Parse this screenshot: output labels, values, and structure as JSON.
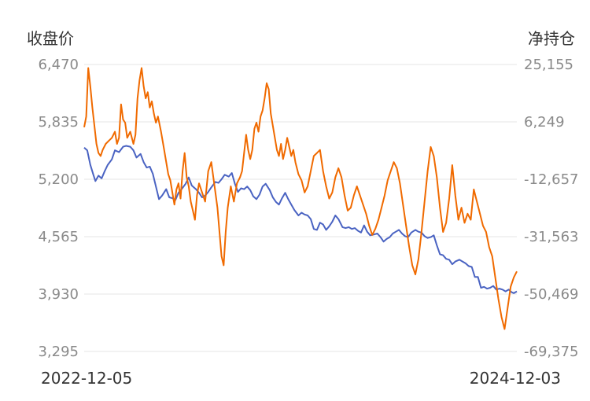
{
  "chart_data": {
    "type": "line",
    "left_axis_title": "收盘价",
    "right_axis_title": "净持仓",
    "y_left": {
      "ticks": [
        "6,470",
        "5,835",
        "5,200",
        "4,565",
        "3,930",
        "3,295"
      ],
      "range": [
        3295,
        6470
      ]
    },
    "y_right": {
      "ticks": [
        "25,155",
        "6,249",
        "-12,657",
        "-31,563",
        "-50,469",
        "-69,375"
      ],
      "range": [
        -69375,
        25155
      ]
    },
    "x_start_label": "2022-12-05",
    "x_end_label": "2024-12-03",
    "grid": true,
    "series": [
      {
        "axis": "left",
        "color": "#4a63c2",
        "points": [
          [
            0,
            5550
          ],
          [
            3,
            5520
          ],
          [
            6,
            5360
          ],
          [
            9,
            5250
          ],
          [
            11,
            5180
          ],
          [
            14,
            5240
          ],
          [
            17,
            5210
          ],
          [
            20,
            5290
          ],
          [
            23,
            5360
          ],
          [
            27,
            5420
          ],
          [
            30,
            5520
          ],
          [
            34,
            5500
          ],
          [
            38,
            5560
          ],
          [
            41,
            5570
          ],
          [
            45,
            5560
          ],
          [
            48,
            5520
          ],
          [
            51,
            5440
          ],
          [
            55,
            5480
          ],
          [
            58,
            5390
          ],
          [
            61,
            5330
          ],
          [
            64,
            5340
          ],
          [
            67,
            5260
          ],
          [
            70,
            5120
          ],
          [
            73,
            4980
          ],
          [
            76,
            5020
          ],
          [
            80,
            5090
          ],
          [
            83,
            5000
          ],
          [
            86,
            4990
          ],
          [
            89,
            4970
          ],
          [
            92,
            5050
          ],
          [
            95,
            5090
          ],
          [
            99,
            5150
          ],
          [
            102,
            5220
          ],
          [
            105,
            5130
          ],
          [
            109,
            5090
          ],
          [
            112,
            5050
          ],
          [
            115,
            5000
          ],
          [
            118,
            5020
          ],
          [
            121,
            5060
          ],
          [
            124,
            5110
          ],
          [
            128,
            5170
          ],
          [
            131,
            5160
          ],
          [
            134,
            5200
          ],
          [
            137,
            5250
          ],
          [
            141,
            5230
          ],
          [
            144,
            5270
          ],
          [
            147,
            5150
          ],
          [
            150,
            5060
          ],
          [
            153,
            5100
          ],
          [
            156,
            5090
          ],
          [
            159,
            5120
          ],
          [
            162,
            5080
          ],
          [
            165,
            5010
          ],
          [
            168,
            4980
          ],
          [
            171,
            5030
          ],
          [
            174,
            5120
          ],
          [
            177,
            5150
          ],
          [
            181,
            5080
          ],
          [
            184,
            5000
          ],
          [
            187,
            4950
          ],
          [
            190,
            4920
          ],
          [
            193,
            4990
          ],
          [
            196,
            5050
          ],
          [
            199,
            4980
          ],
          [
            202,
            4920
          ],
          [
            205,
            4860
          ],
          [
            209,
            4800
          ],
          [
            212,
            4830
          ],
          [
            215,
            4810
          ],
          [
            218,
            4800
          ],
          [
            221,
            4760
          ],
          [
            224,
            4650
          ],
          [
            227,
            4640
          ],
          [
            230,
            4720
          ],
          [
            233,
            4700
          ],
          [
            236,
            4640
          ],
          [
            239,
            4680
          ],
          [
            242,
            4730
          ],
          [
            245,
            4800
          ],
          [
            248,
            4760
          ],
          [
            252,
            4670
          ],
          [
            255,
            4660
          ],
          [
            258,
            4670
          ],
          [
            261,
            4650
          ],
          [
            264,
            4660
          ],
          [
            267,
            4630
          ],
          [
            270,
            4610
          ],
          [
            273,
            4690
          ],
          [
            276,
            4620
          ],
          [
            279,
            4580
          ],
          [
            283,
            4590
          ],
          [
            286,
            4600
          ],
          [
            289,
            4560
          ],
          [
            292,
            4510
          ],
          [
            295,
            4540
          ],
          [
            298,
            4560
          ],
          [
            301,
            4600
          ],
          [
            304,
            4620
          ],
          [
            307,
            4640
          ],
          [
            310,
            4600
          ],
          [
            313,
            4570
          ],
          [
            316,
            4560
          ],
          [
            319,
            4610
          ],
          [
            323,
            4640
          ],
          [
            326,
            4620
          ],
          [
            329,
            4610
          ],
          [
            332,
            4570
          ],
          [
            335,
            4550
          ],
          [
            338,
            4560
          ],
          [
            341,
            4580
          ],
          [
            344,
            4470
          ],
          [
            347,
            4370
          ],
          [
            350,
            4360
          ],
          [
            353,
            4320
          ],
          [
            356,
            4310
          ],
          [
            359,
            4260
          ],
          [
            362,
            4290
          ],
          [
            366,
            4310
          ],
          [
            369,
            4290
          ],
          [
            372,
            4270
          ],
          [
            375,
            4240
          ],
          [
            378,
            4230
          ],
          [
            381,
            4120
          ],
          [
            384,
            4120
          ],
          [
            387,
            4000
          ],
          [
            390,
            4010
          ],
          [
            393,
            3990
          ],
          [
            396,
            4000
          ],
          [
            399,
            4020
          ],
          [
            402,
            3980
          ],
          [
            405,
            3990
          ],
          [
            408,
            3980
          ],
          [
            411,
            3960
          ],
          [
            414,
            3980
          ],
          [
            417,
            3950
          ],
          [
            419,
            3940
          ],
          [
            422,
            3960
          ]
        ]
      },
      {
        "axis": "right",
        "color": "#f06a00",
        "points": [
          [
            0,
            4500
          ],
          [
            2,
            8000
          ],
          [
            4,
            24000
          ],
          [
            6,
            18000
          ],
          [
            8,
            11000
          ],
          [
            10,
            5000
          ],
          [
            12,
            -1000
          ],
          [
            14,
            -4000
          ],
          [
            16,
            -5000
          ],
          [
            18,
            -3000
          ],
          [
            21,
            -1000
          ],
          [
            24,
            0
          ],
          [
            27,
            1000
          ],
          [
            30,
            3000
          ],
          [
            32,
            -1000
          ],
          [
            34,
            1000
          ],
          [
            36,
            12000
          ],
          [
            38,
            7000
          ],
          [
            40,
            6000
          ],
          [
            42,
            1000
          ],
          [
            45,
            3000
          ],
          [
            48,
            -1000
          ],
          [
            50,
            2000
          ],
          [
            52,
            14000
          ],
          [
            54,
            20000
          ],
          [
            56,
            24000
          ],
          [
            58,
            18000
          ],
          [
            60,
            14000
          ],
          [
            62,
            16000
          ],
          [
            64,
            11000
          ],
          [
            66,
            13000
          ],
          [
            68,
            9000
          ],
          [
            70,
            6000
          ],
          [
            72,
            8000
          ],
          [
            75,
            3000
          ],
          [
            78,
            -3000
          ],
          [
            80,
            -7000
          ],
          [
            82,
            -11000
          ],
          [
            84,
            -13000
          ],
          [
            86,
            -17000
          ],
          [
            88,
            -21000
          ],
          [
            90,
            -16000
          ],
          [
            92,
            -14000
          ],
          [
            94,
            -19000
          ],
          [
            96,
            -10000
          ],
          [
            98,
            -4000
          ],
          [
            100,
            -12000
          ],
          [
            102,
            -15000
          ],
          [
            104,
            -20000
          ],
          [
            106,
            -23000
          ],
          [
            108,
            -26000
          ],
          [
            110,
            -18000
          ],
          [
            112,
            -14000
          ],
          [
            115,
            -17000
          ],
          [
            118,
            -20000
          ],
          [
            121,
            -10000
          ],
          [
            124,
            -7000
          ],
          [
            126,
            -12000
          ],
          [
            128,
            -17000
          ],
          [
            130,
            -22000
          ],
          [
            132,
            -30000
          ],
          [
            134,
            -38000
          ],
          [
            136,
            -41000
          ],
          [
            138,
            -30000
          ],
          [
            140,
            -22000
          ],
          [
            143,
            -15000
          ],
          [
            146,
            -20000
          ],
          [
            149,
            -14000
          ],
          [
            152,
            -12000
          ],
          [
            154,
            -10000
          ],
          [
            156,
            -4000
          ],
          [
            158,
            2000
          ],
          [
            160,
            -3000
          ],
          [
            162,
            -6000
          ],
          [
            164,
            -3000
          ],
          [
            166,
            4000
          ],
          [
            168,
            6000
          ],
          [
            170,
            3000
          ],
          [
            172,
            8000
          ],
          [
            174,
            10000
          ],
          [
            176,
            14000
          ],
          [
            178,
            19000
          ],
          [
            180,
            17000
          ],
          [
            182,
            9000
          ],
          [
            184,
            5000
          ],
          [
            186,
            1000
          ],
          [
            188,
            -3000
          ],
          [
            190,
            -5000
          ],
          [
            192,
            -1000
          ],
          [
            194,
            -6000
          ],
          [
            196,
            -3000
          ],
          [
            198,
            1000
          ],
          [
            200,
            -2000
          ],
          [
            202,
            -5000
          ],
          [
            204,
            -3000
          ],
          [
            206,
            -7000
          ],
          [
            209,
            -11000
          ],
          [
            212,
            -13000
          ],
          [
            215,
            -17000
          ],
          [
            218,
            -15000
          ],
          [
            221,
            -10000
          ],
          [
            224,
            -5000
          ],
          [
            227,
            -4000
          ],
          [
            230,
            -3000
          ],
          [
            233,
            -10000
          ],
          [
            236,
            -15000
          ],
          [
            239,
            -19000
          ],
          [
            242,
            -17000
          ],
          [
            245,
            -12000
          ],
          [
            248,
            -9000
          ],
          [
            251,
            -12000
          ],
          [
            254,
            -18000
          ],
          [
            257,
            -23000
          ],
          [
            260,
            -22000
          ],
          [
            263,
            -18000
          ],
          [
            266,
            -15000
          ],
          [
            269,
            -18000
          ],
          [
            272,
            -21000
          ],
          [
            275,
            -24000
          ],
          [
            278,
            -28000
          ],
          [
            281,
            -31000
          ],
          [
            284,
            -29000
          ],
          [
            287,
            -26000
          ],
          [
            290,
            -22000
          ],
          [
            293,
            -18000
          ],
          [
            296,
            -13000
          ],
          [
            299,
            -10000
          ],
          [
            302,
            -7000
          ],
          [
            305,
            -9000
          ],
          [
            308,
            -14000
          ],
          [
            311,
            -21000
          ],
          [
            314,
            -28000
          ],
          [
            317,
            -35000
          ],
          [
            320,
            -41000
          ],
          [
            323,
            -44000
          ],
          [
            326,
            -39000
          ],
          [
            329,
            -30000
          ],
          [
            332,
            -20000
          ],
          [
            335,
            -10000
          ],
          [
            338,
            -2000
          ],
          [
            341,
            -5000
          ],
          [
            344,
            -12000
          ],
          [
            347,
            -22000
          ],
          [
            350,
            -30000
          ],
          [
            353,
            -27000
          ],
          [
            356,
            -19000
          ],
          [
            359,
            -8000
          ],
          [
            362,
            -18000
          ],
          [
            365,
            -26000
          ],
          [
            368,
            -22000
          ],
          [
            371,
            -27000
          ],
          [
            374,
            -24000
          ],
          [
            377,
            -26000
          ],
          [
            380,
            -16000
          ],
          [
            383,
            -20000
          ],
          [
            386,
            -24000
          ],
          [
            389,
            -28000
          ],
          [
            392,
            -30000
          ],
          [
            395,
            -35000
          ],
          [
            398,
            -38000
          ],
          [
            401,
            -45000
          ],
          [
            404,
            -52000
          ],
          [
            407,
            -58000
          ],
          [
            410,
            -62000
          ],
          [
            413,
            -55000
          ],
          [
            416,
            -48000
          ],
          [
            419,
            -45000
          ],
          [
            422,
            -43000
          ]
        ]
      }
    ]
  }
}
